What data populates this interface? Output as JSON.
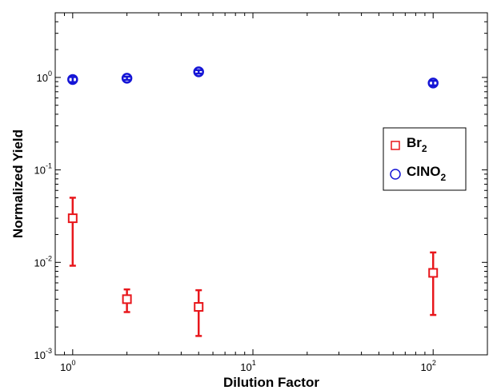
{
  "chart_data": {
    "type": "scatter",
    "xlabel": "Dilution Factor",
    "ylabel": "Normalized Yield",
    "xscale": "log",
    "yscale": "log",
    "xlim": [
      0.8,
      200
    ],
    "ylim": [
      0.001,
      5
    ],
    "x_ticks": [
      {
        "base": "10",
        "exp": "0",
        "value": 1
      },
      {
        "base": "10",
        "exp": "1",
        "value": 10
      },
      {
        "base": "10",
        "exp": "2",
        "value": 100
      }
    ],
    "y_ticks": [
      {
        "base": "10",
        "exp": "-3",
        "value": 0.001
      },
      {
        "base": "10",
        "exp": "-2",
        "value": 0.01
      },
      {
        "base": "10",
        "exp": "-1",
        "value": 0.1
      },
      {
        "base": "10",
        "exp": "0",
        "value": 1
      }
    ],
    "grid": false,
    "legend_position": "right",
    "series": [
      {
        "name": "Br2",
        "label_main": "Br",
        "label_sub": "2",
        "marker": "square",
        "color": "#e8171c",
        "points": [
          {
            "x": 1,
            "y": 0.03,
            "err_low": 0.0092,
            "err_high": 0.05
          },
          {
            "x": 2,
            "y": 0.004,
            "err_low": 0.0029,
            "err_high": 0.0051
          },
          {
            "x": 5,
            "y": 0.0033,
            "err_low": 0.0016,
            "err_high": 0.005
          },
          {
            "x": 100,
            "y": 0.0077,
            "err_low": 0.0027,
            "err_high": 0.0128
          }
        ]
      },
      {
        "name": "ClNO2",
        "label_main": "ClNO",
        "label_sub": "2",
        "marker": "circle",
        "color": "#1515d6",
        "points": [
          {
            "x": 1,
            "y": 0.95,
            "err_low": 0.89,
            "err_high": 1.01
          },
          {
            "x": 2,
            "y": 0.98,
            "err_low": 0.94,
            "err_high": 1.02
          },
          {
            "x": 5,
            "y": 1.15,
            "err_low": 1.1,
            "err_high": 1.2
          },
          {
            "x": 100,
            "y": 0.87,
            "err_low": 0.82,
            "err_high": 0.92
          }
        ]
      }
    ]
  }
}
